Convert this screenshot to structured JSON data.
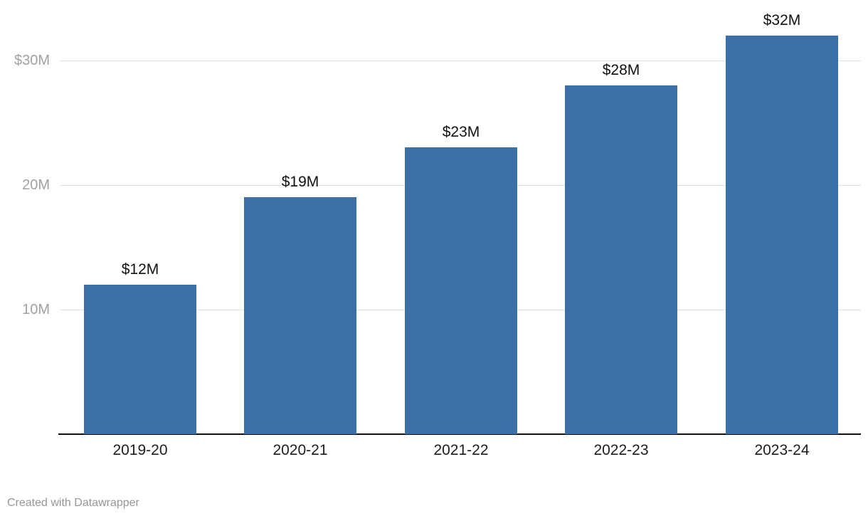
{
  "chart_data": {
    "type": "bar",
    "categories": [
      "2019-20",
      "2020-21",
      "2021-22",
      "2022-23",
      "2023-24"
    ],
    "values": [
      12,
      19,
      23,
      28,
      32
    ],
    "value_labels": [
      "$12M",
      "$19M",
      "$23M",
      "$28M",
      "$32M"
    ],
    "y_ticks": [
      {
        "value": 10,
        "label": "10M"
      },
      {
        "value": 20,
        "label": "20M"
      },
      {
        "value": 30,
        "label": "$30M"
      }
    ],
    "title": "",
    "xlabel": "",
    "ylabel": "",
    "ylim": [
      0,
      34.9
    ],
    "grid": true,
    "legend": "none",
    "bar_color": "#3a6fa8"
  },
  "colors": {
    "background": "#ffffff",
    "bar": "#3a6fa8",
    "gridline": "#e2e2e2",
    "axis_line": "#111111",
    "y_tick_label": "#a1a1a1",
    "x_tick_label": "#1d1d1d",
    "value_label": "#111111",
    "footer_text": "#969696"
  },
  "footer": {
    "attribution": "Created with Datawrapper"
  }
}
